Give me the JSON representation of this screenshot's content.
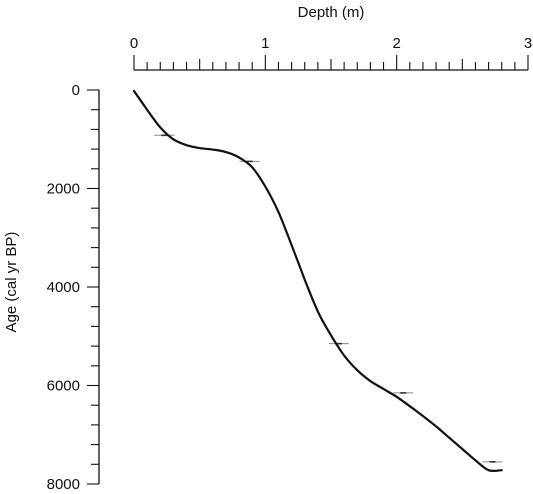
{
  "chart_data": {
    "type": "line",
    "title": "",
    "xlabel": "Depth (m)",
    "ylabel": "Age (cal yr BP)",
    "xlim": [
      0,
      3
    ],
    "ylim": [
      0,
      8000
    ],
    "x_ticks": [
      "0",
      "1",
      "2",
      "3"
    ],
    "y_ticks": [
      "0",
      "2000",
      "4000",
      "6000",
      "8000"
    ],
    "x_axis_position": "top",
    "y_axis_inverted": true,
    "grid": false,
    "series": [
      {
        "x": [
          0.0,
          0.1,
          0.2,
          0.3,
          0.4,
          0.5,
          0.6,
          0.7,
          0.8,
          0.9,
          1.0,
          1.1,
          1.2,
          1.3,
          1.4,
          1.5,
          1.6,
          1.7,
          1.8,
          1.9,
          2.0,
          2.1,
          2.2,
          2.3,
          2.4,
          2.5,
          2.6,
          2.7,
          2.8
        ],
        "y": [
          20,
          400,
          760,
          1000,
          1120,
          1180,
          1210,
          1260,
          1370,
          1570,
          1960,
          2480,
          3150,
          3850,
          4500,
          4980,
          5390,
          5690,
          5910,
          6070,
          6230,
          6420,
          6620,
          6830,
          7060,
          7290,
          7520,
          7720,
          7720
        ]
      }
    ],
    "dates": [
      {
        "depth": 0.23,
        "age": 920,
        "error": 100
      },
      {
        "depth": 0.88,
        "age": 1450,
        "error": 120
      },
      {
        "depth": 1.56,
        "age": 5150,
        "error": 140
      },
      {
        "depth": 2.05,
        "age": 6150,
        "error": 150
      },
      {
        "depth": 2.73,
        "age": 7550,
        "error": 160
      }
    ]
  }
}
